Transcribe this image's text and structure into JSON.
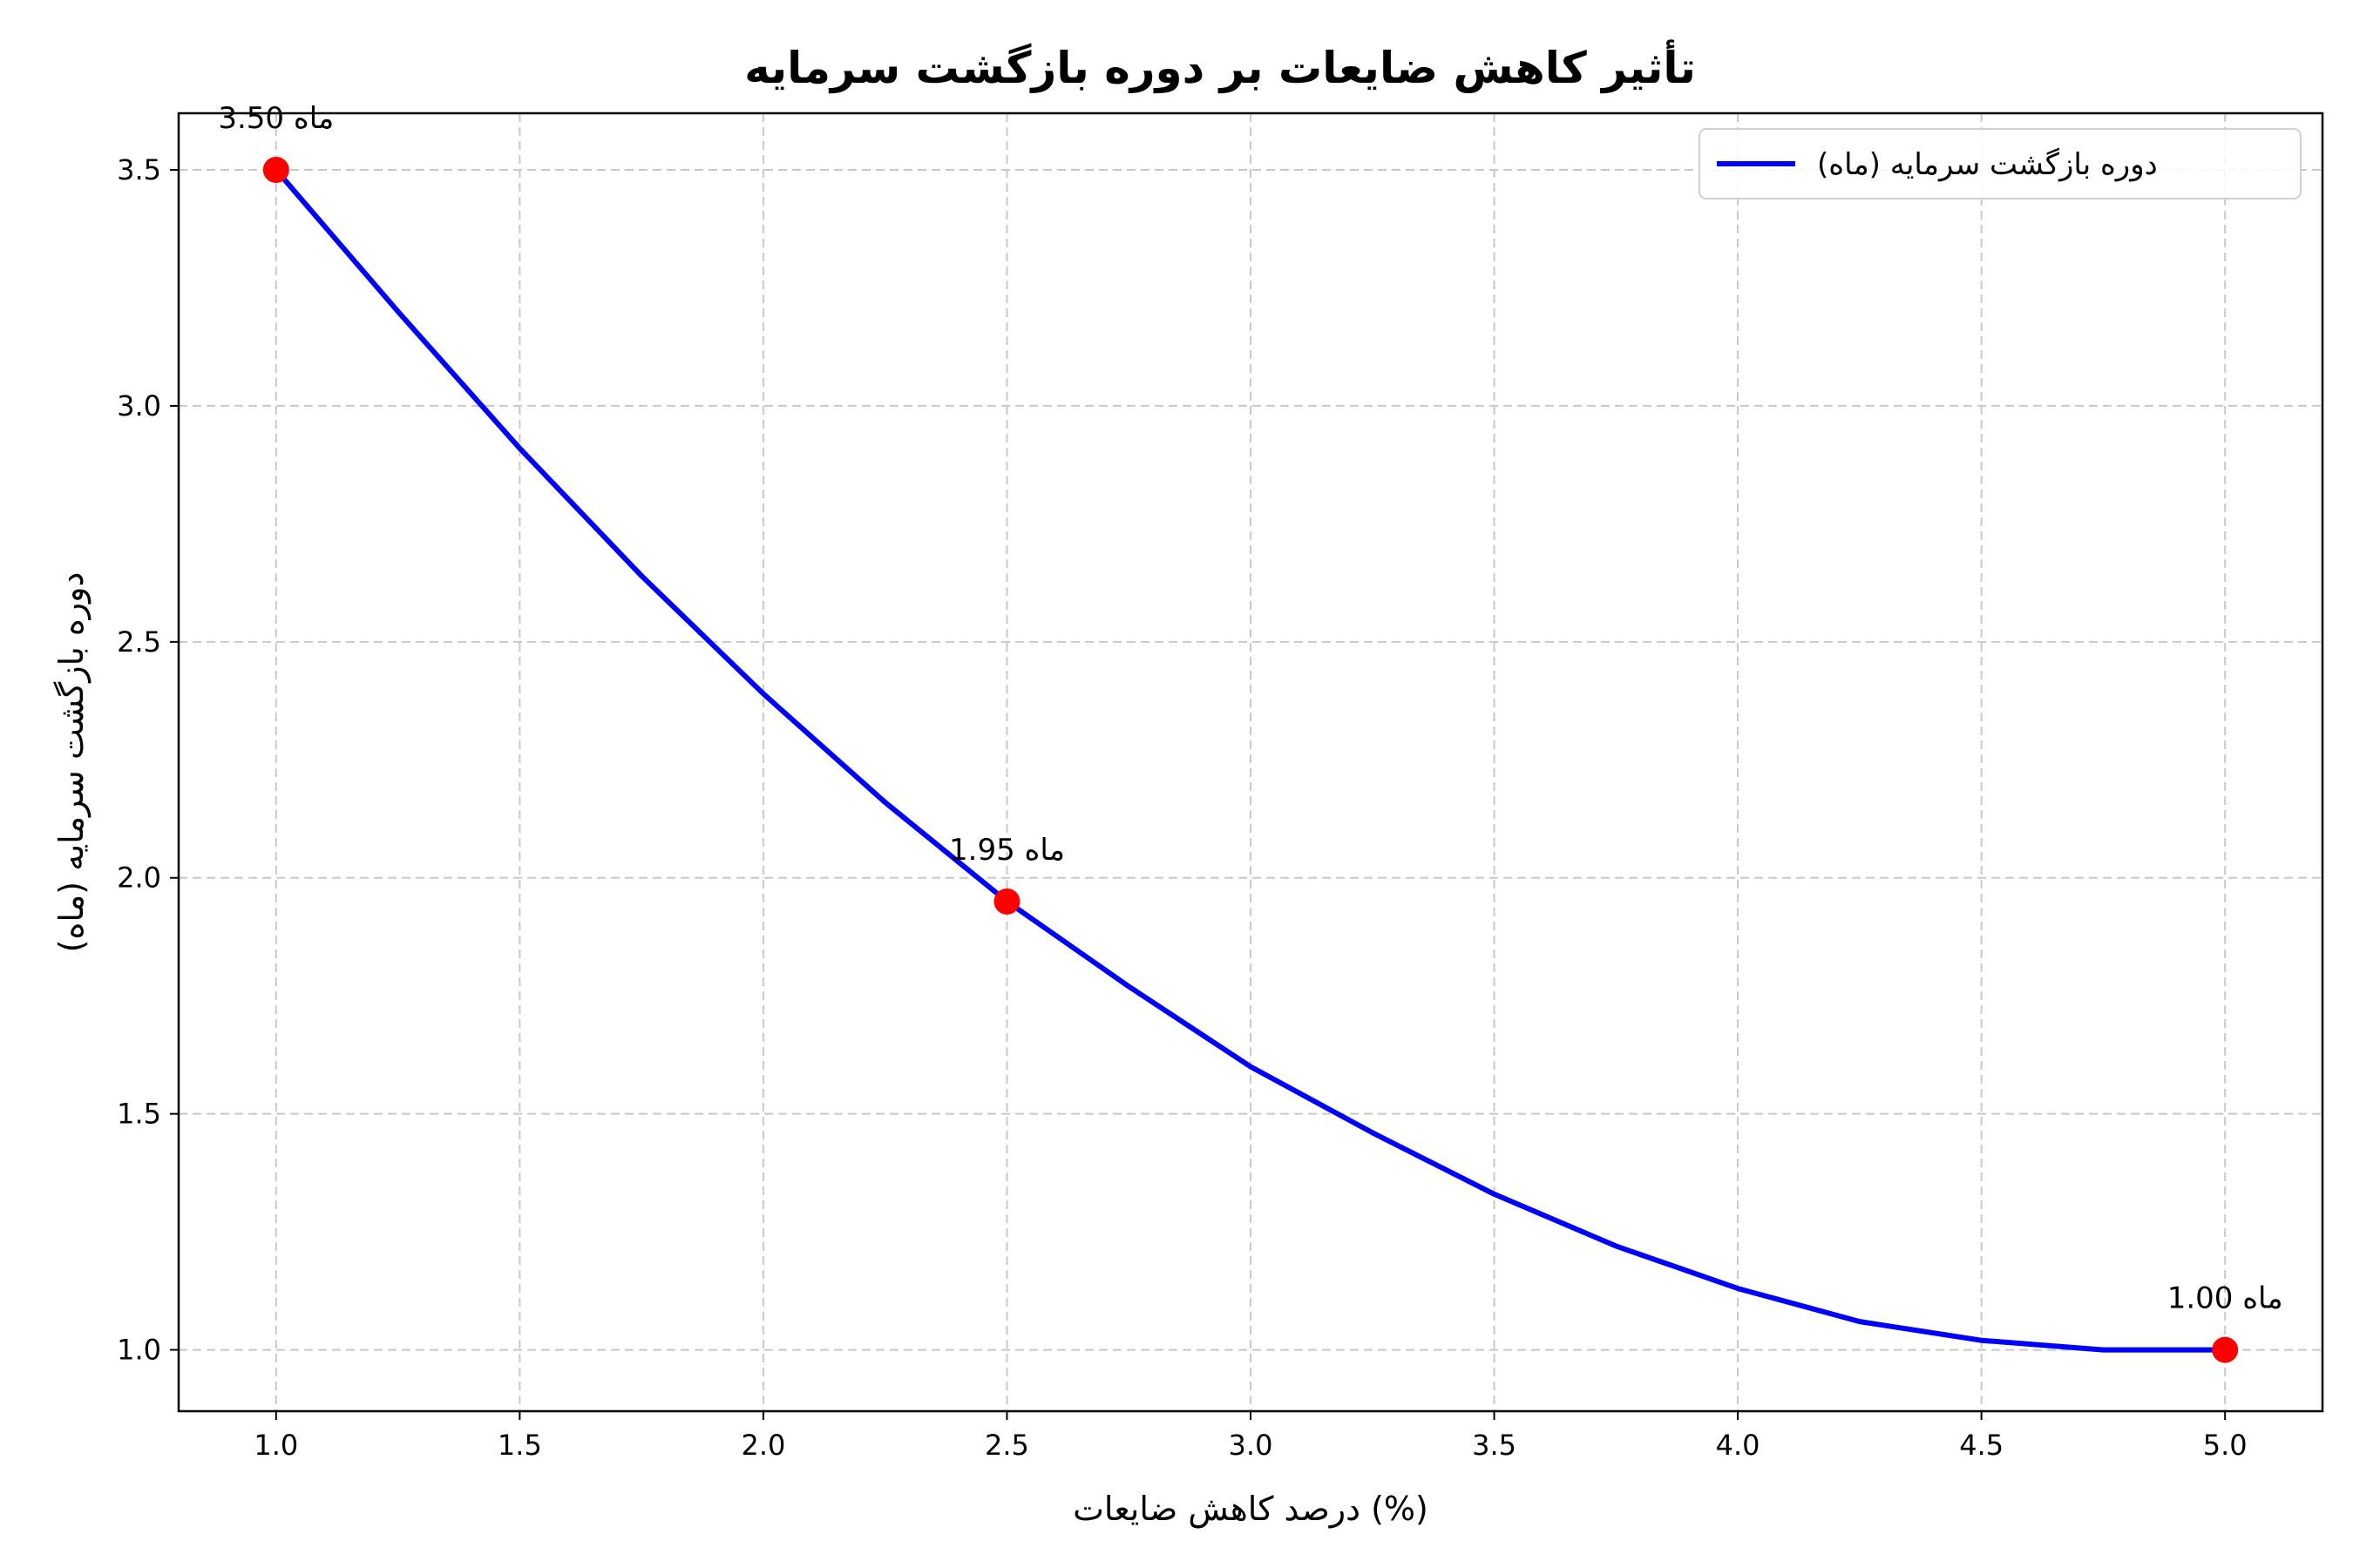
{
  "chart_data": {
    "type": "line",
    "title": "تأثیر کاهش ضایعات بر دوره بازگشت سرمایه",
    "xlabel": "درصد کاهش ضایعات (%)",
    "ylabel": "دوره بازگشت سرمایه (ماه)",
    "xlim": [
      0.8,
      5.2
    ],
    "ylim": [
      0.87,
      3.62
    ],
    "xticks": [
      1.0,
      1.5,
      2.0,
      2.5,
      3.0,
      3.5,
      4.0,
      4.5,
      5.0
    ],
    "yticks": [
      1.0,
      1.5,
      2.0,
      2.5,
      3.0,
      3.5
    ],
    "x_tick_labels": [
      "1.0",
      "1.5",
      "2.0",
      "2.5",
      "3.0",
      "3.5",
      "4.0",
      "4.5",
      "5.0"
    ],
    "y_tick_labels": [
      "1.0",
      "1.5",
      "2.0",
      "2.5",
      "3.0",
      "3.5"
    ],
    "grid": true,
    "legend_position": "top-right",
    "series": [
      {
        "name": "دوره بازگشت سرمایه (ماه)",
        "color": "#0000ff",
        "x": [
          1.0,
          1.25,
          1.5,
          1.75,
          2.0,
          2.25,
          2.5,
          2.75,
          3.0,
          3.25,
          3.5,
          3.75,
          4.0,
          4.25,
          4.5,
          4.75,
          5.0
        ],
        "y": [
          3.5,
          3.2,
          2.91,
          2.64,
          2.39,
          2.16,
          1.95,
          1.77,
          1.6,
          1.46,
          1.33,
          1.22,
          1.13,
          1.06,
          1.02,
          1.0,
          1.0
        ]
      }
    ],
    "highlighted_points": [
      {
        "x": 1.0,
        "y": 3.5,
        "label": "3.50 ماه",
        "color": "#ff0000"
      },
      {
        "x": 2.5,
        "y": 1.95,
        "label": "1.95 ماه",
        "color": "#ff0000"
      },
      {
        "x": 5.0,
        "y": 1.0,
        "label": "1.00 ماه",
        "color": "#ff0000"
      }
    ]
  }
}
